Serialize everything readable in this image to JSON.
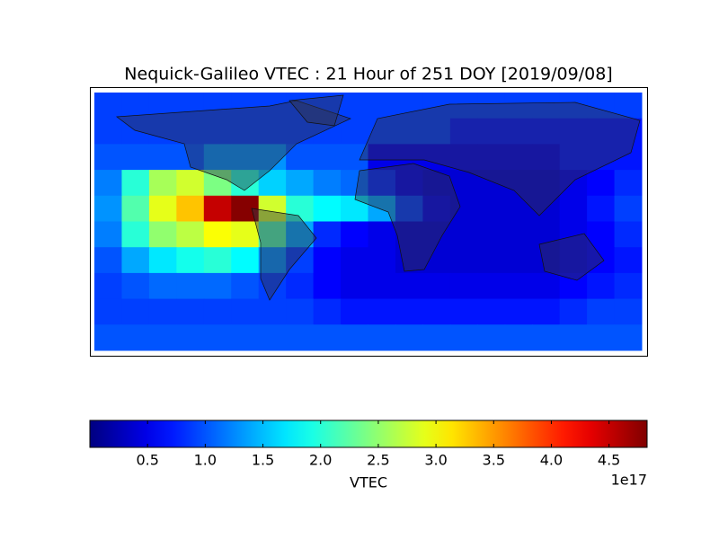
{
  "chart_data": {
    "type": "heatmap",
    "title": "Nequick-Galileo VTEC : 21 Hour of 251 DOY [2019/09/08]",
    "colormap": "jet",
    "z": [
      [
        0.9,
        0.9,
        0.9,
        0.9,
        0.9,
        0.9,
        0.9,
        0.9,
        0.9,
        0.9,
        0.9,
        0.9,
        0.9,
        0.9,
        0.9,
        0.9,
        0.9,
        0.9,
        0.9,
        0.9
      ],
      [
        0.9,
        0.9,
        0.9,
        0.9,
        0.9,
        0.9,
        0.9,
        0.9,
        0.9,
        0.9,
        0.9,
        0.9,
        0.9,
        0.7,
        0.7,
        0.7,
        0.7,
        0.7,
        0.7,
        0.7
      ],
      [
        1.0,
        1.0,
        1.0,
        1.0,
        1.3,
        1.3,
        1.3,
        1.0,
        1.0,
        1.0,
        0.5,
        0.5,
        0.5,
        0.5,
        0.5,
        0.5,
        0.5,
        0.7,
        0.7,
        0.7
      ],
      [
        1.2,
        2.0,
        2.6,
        2.8,
        2.4,
        2.0,
        1.6,
        1.4,
        1.2,
        1.1,
        0.8,
        0.5,
        0.4,
        0.4,
        0.4,
        0.4,
        0.4,
        0.5,
        0.6,
        0.8
      ],
      [
        1.3,
        2.2,
        2.9,
        3.3,
        4.5,
        4.8,
        2.8,
        2.0,
        1.8,
        1.7,
        1.4,
        0.9,
        0.5,
        0.4,
        0.4,
        0.4,
        0.4,
        0.5,
        0.7,
        0.9
      ],
      [
        1.2,
        2.0,
        2.5,
        2.7,
        3.0,
        2.9,
        2.2,
        1.4,
        0.8,
        0.6,
        0.5,
        0.4,
        0.4,
        0.4,
        0.4,
        0.4,
        0.4,
        0.5,
        0.6,
        0.8
      ],
      [
        1.0,
        1.4,
        1.7,
        1.9,
        2.0,
        1.8,
        1.3,
        0.9,
        0.6,
        0.5,
        0.5,
        0.4,
        0.4,
        0.4,
        0.4,
        0.4,
        0.4,
        0.5,
        0.6,
        0.7
      ],
      [
        0.9,
        1.0,
        1.1,
        1.1,
        1.1,
        1.0,
        0.9,
        0.8,
        0.6,
        0.5,
        0.5,
        0.5,
        0.5,
        0.5,
        0.5,
        0.5,
        0.5,
        0.6,
        0.7,
        0.8
      ],
      [
        0.9,
        0.9,
        0.9,
        0.9,
        0.9,
        0.9,
        0.9,
        0.9,
        0.8,
        0.7,
        0.7,
        0.7,
        0.7,
        0.7,
        0.7,
        0.7,
        0.7,
        0.8,
        0.9,
        0.9
      ],
      [
        1.0,
        1.0,
        1.0,
        1.0,
        1.0,
        1.0,
        1.0,
        1.0,
        1.0,
        1.0,
        1.0,
        1.0,
        1.0,
        1.0,
        1.0,
        1.0,
        1.0,
        1.0,
        1.0,
        1.0
      ]
    ],
    "colorbar": {
      "label": "VTEC",
      "offset_label": "1e17",
      "clim": [
        0,
        4.83
      ],
      "ticks": [
        0.5,
        {
          "value": 1,
          "label": "1.0"
        },
        1.5,
        {
          "value": 2,
          "label": "2.0"
        },
        2.5,
        {
          "value": 3,
          "label": "3.0"
        },
        3.5,
        {
          "value": 4,
          "label": "4.0"
        },
        4.5
      ]
    }
  }
}
